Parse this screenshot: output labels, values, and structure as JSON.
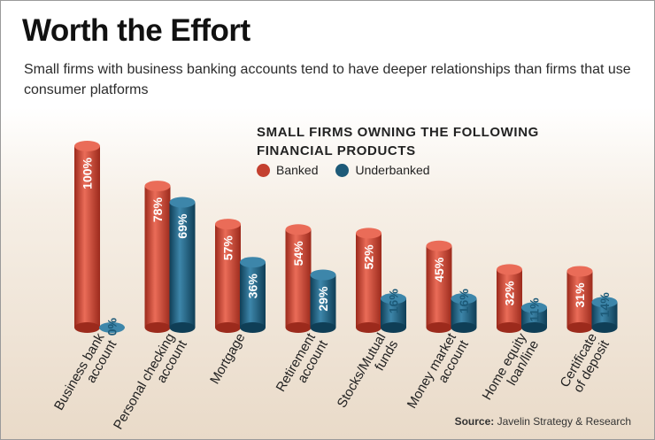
{
  "title": "Worth the Effort",
  "subtitle": "Small firms with business banking accounts tend to have deeper relationships than firms that use consumer platforms",
  "source": {
    "label": "Source:",
    "text": "Javelin Strategy & Research"
  },
  "colors": {
    "banked": "#c4402f",
    "underbanked": "#1d5a78"
  },
  "chart_data": {
    "type": "bar",
    "title_lines": [
      "SMALL FIRMS OWNING THE FOLLOWING",
      "FINANCIAL PRODUCTS"
    ],
    "categories": [
      [
        "Business bank",
        "account"
      ],
      [
        "Personal checking",
        "account"
      ],
      [
        "Mortgage"
      ],
      [
        "Retirement",
        "account"
      ],
      [
        "Stocks/Mutual",
        "funds"
      ],
      [
        "Money market",
        "account"
      ],
      [
        "Home equity",
        "loan/line"
      ],
      [
        "Certificate",
        "of deposit"
      ]
    ],
    "series": [
      {
        "name": "Banked",
        "values": [
          100,
          78,
          57,
          54,
          52,
          45,
          32,
          31
        ]
      },
      {
        "name": "Underbanked",
        "values": [
          0,
          69,
          36,
          29,
          16,
          16,
          11,
          14
        ]
      }
    ],
    "value_suffix": "%",
    "ylim": [
      0,
      100
    ],
    "grid": false,
    "legend": "top-center"
  }
}
